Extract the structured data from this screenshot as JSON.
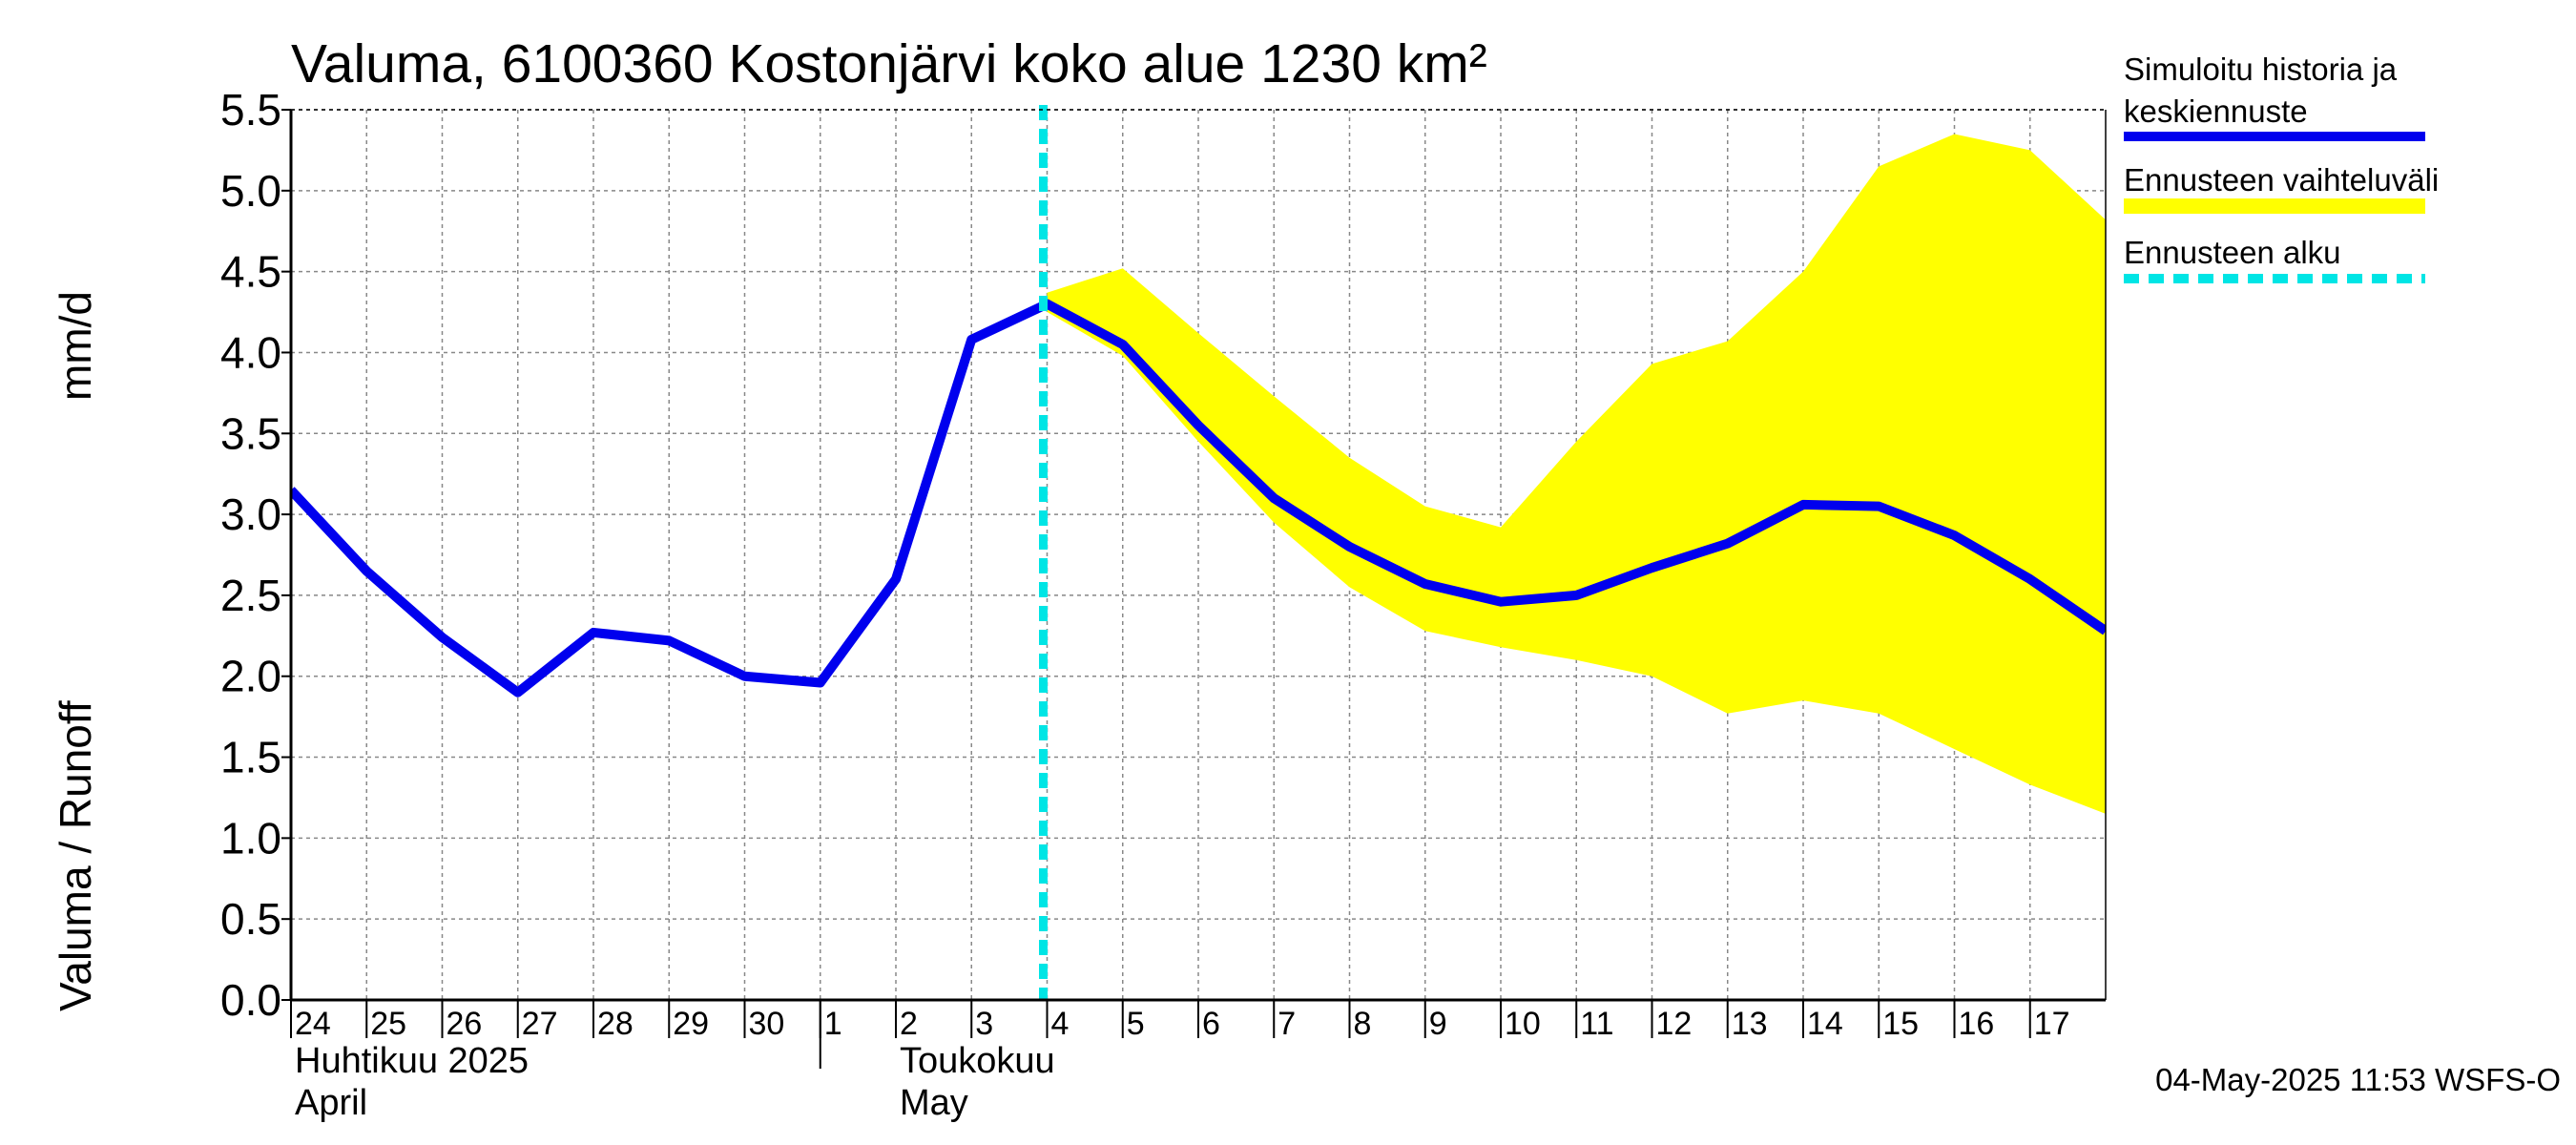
{
  "chart_data": {
    "type": "line",
    "title": "Valuma, 6100360 Kostonjärvi koko alue 1230 km²",
    "ylabel_left": "Valuma / Runoff",
    "ylabel_right": "mm/d",
    "ylim": [
      0,
      5.5
    ],
    "yticks": [
      "0.0",
      "0.5",
      "1.0",
      "1.5",
      "2.0",
      "2.5",
      "3.0",
      "3.5",
      "4.0",
      "4.5",
      "5.0",
      "5.5"
    ],
    "x_start": "2025-04-24",
    "x_end": "2025-05-17",
    "x_ticks": [
      "24",
      "25",
      "26",
      "27",
      "28",
      "29",
      "30",
      "1",
      "2",
      "3",
      "4",
      "5",
      "6",
      "7",
      "8",
      "9",
      "10",
      "11",
      "12",
      "13",
      "14",
      "15",
      "16",
      "17"
    ],
    "month_labels": [
      {
        "fi": "Huhtikuu  2025",
        "en": "April"
      },
      {
        "fi": "Toukokuu",
        "en": "May"
      }
    ],
    "grid": true,
    "forecast_start": "2025-05-04",
    "series": [
      {
        "name": "Simuloitu historia ja keskiennuste",
        "color": "#0000ee",
        "x": [
          "2025-04-24",
          "2025-04-25",
          "2025-04-26",
          "2025-04-27",
          "2025-04-28",
          "2025-04-29",
          "2025-04-30",
          "2025-05-01",
          "2025-05-02",
          "2025-05-03",
          "2025-05-04",
          "2025-05-05",
          "2025-05-06",
          "2025-05-07",
          "2025-05-08",
          "2025-05-09",
          "2025-05-10",
          "2025-05-11",
          "2025-05-12",
          "2025-05-13",
          "2025-05-14",
          "2025-05-15",
          "2025-05-16",
          "2025-05-17",
          "2025-05-18"
        ],
        "y": [
          3.15,
          2.65,
          2.24,
          1.9,
          2.27,
          2.22,
          2.0,
          1.96,
          2.6,
          4.08,
          4.3,
          4.05,
          3.55,
          3.1,
          2.8,
          2.57,
          2.46,
          2.5,
          2.67,
          2.82,
          3.06,
          3.05,
          2.87,
          2.6,
          2.28
        ]
      },
      {
        "name": "Ennusteen vaihteluväli",
        "color": "#ffff00",
        "x": [
          "2025-05-04",
          "2025-05-05",
          "2025-05-06",
          "2025-05-07",
          "2025-05-08",
          "2025-05-09",
          "2025-05-10",
          "2025-05-11",
          "2025-05-12",
          "2025-05-13",
          "2025-05-14",
          "2025-05-15",
          "2025-05-16",
          "2025-05-17",
          "2025-05-18"
        ],
        "upper": [
          4.37,
          4.52,
          4.12,
          3.73,
          3.35,
          3.05,
          2.92,
          3.45,
          3.93,
          4.07,
          4.5,
          5.15,
          5.35,
          5.25,
          4.82
        ],
        "lower": [
          4.25,
          3.98,
          3.45,
          2.95,
          2.55,
          2.28,
          2.18,
          2.1,
          2.0,
          1.77,
          1.85,
          1.77,
          1.55,
          1.33,
          1.15
        ]
      },
      {
        "name": "Ennusteen alku",
        "color": "#00e5e5"
      }
    ]
  },
  "footer": "04-May-2025 11:53 WSFS-O"
}
